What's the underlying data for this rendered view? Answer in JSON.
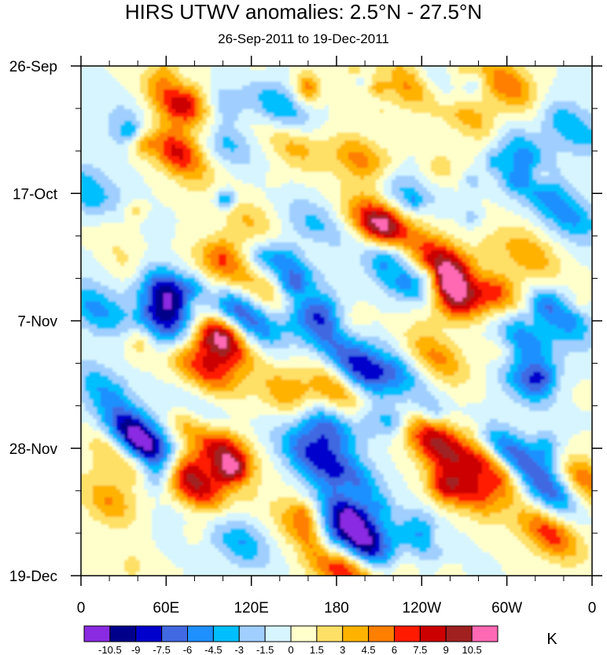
{
  "chart_data": {
    "type": "heatmap",
    "title": "HIRS UTWV anomalies: 2.5°N - 27.5°N",
    "subtitle": "26-Sep-2011 to 19-Dec-2011",
    "xlabel": "",
    "ylabel": "",
    "units": "K",
    "x_tick_labels": [
      "0",
      "60E",
      "120E",
      "180",
      "120W",
      "60W",
      "0"
    ],
    "y_tick_labels": [
      "26-Sep",
      "17-Oct",
      "7-Nov",
      "28-Nov",
      "19-Dec"
    ],
    "xlim": [
      0,
      360
    ],
    "ylim_days": [
      0,
      84
    ],
    "colorbar_levels": [
      "-10.5",
      "-9",
      "-7.5",
      "-6",
      "-4.5",
      "-3",
      "-1.5",
      "0",
      "1.5",
      "3",
      "4.5",
      "6",
      "7.5",
      "9",
      "10.5"
    ],
    "colorbar_colors": [
      "#8a2be2",
      "#00008b",
      "#0000cd",
      "#4169e1",
      "#1e90ff",
      "#00bfff",
      "#a0cfff",
      "#d6f5ff",
      "#ffffcc",
      "#ffe066",
      "#ffb300",
      "#ff7f00",
      "#ff1a00",
      "#cc0000",
      "#a02020",
      "#ff69b4"
    ],
    "anomaly_centers": [
      {
        "lon": 70,
        "day": 6,
        "value": 9.5
      },
      {
        "lon": 66,
        "day": 14,
        "value": 8.5
      },
      {
        "lon": 200,
        "day": 16,
        "value": 6
      },
      {
        "lon": 230,
        "day": 3,
        "value": 5
      },
      {
        "lon": 300,
        "day": 3,
        "value": 6
      },
      {
        "lon": 150,
        "day": 13,
        "value": 4
      },
      {
        "lon": 275,
        "day": 8,
        "value": 5
      },
      {
        "lon": 210,
        "day": 26,
        "value": 9
      },
      {
        "lon": 262,
        "day": 37,
        "value": 10.5
      },
      {
        "lon": 255,
        "day": 32,
        "value": 7
      },
      {
        "lon": 290,
        "day": 37,
        "value": 6
      },
      {
        "lon": 315,
        "day": 31,
        "value": 4.5
      },
      {
        "lon": 98,
        "day": 45,
        "value": 10
      },
      {
        "lon": 88,
        "day": 50,
        "value": 7
      },
      {
        "lon": 150,
        "day": 55,
        "value": 6
      },
      {
        "lon": 180,
        "day": 53,
        "value": 5
      },
      {
        "lon": 98,
        "day": 63,
        "value": 10.5
      },
      {
        "lon": 80,
        "day": 69,
        "value": 9
      },
      {
        "lon": 30,
        "day": 64,
        "value": 6
      },
      {
        "lon": 20,
        "day": 72,
        "value": 5
      },
      {
        "lon": 250,
        "day": 62,
        "value": 9
      },
      {
        "lon": 290,
        "day": 66,
        "value": 10
      },
      {
        "lon": 270,
        "day": 70,
        "value": 7
      },
      {
        "lon": 250,
        "day": 48,
        "value": 5
      },
      {
        "lon": 330,
        "day": 77,
        "value": 7
      },
      {
        "lon": 100,
        "day": 33,
        "value": 4
      },
      {
        "lon": 120,
        "day": 26,
        "value": 3.5
      },
      {
        "lon": 158,
        "day": 76,
        "value": 5
      },
      {
        "lon": 200,
        "day": 83,
        "value": 4
      },
      {
        "lon": 180,
        "day": 83,
        "value": 6
      },
      {
        "lon": 356,
        "day": 69,
        "value": 5
      },
      {
        "lon": 40,
        "day": 34,
        "value": 4
      },
      {
        "lon": 136,
        "day": 38,
        "value": 4
      },
      {
        "lon": 320,
        "day": 52,
        "value": 4
      },
      {
        "lon": 223,
        "day": 20,
        "value": -4.5
      },
      {
        "lon": 60,
        "day": 37,
        "value": -10.5
      },
      {
        "lon": 58,
        "day": 42,
        "value": -8
      },
      {
        "lon": 45,
        "day": 63,
        "value": -10
      },
      {
        "lon": 35,
        "day": 60,
        "value": -6
      },
      {
        "lon": 226,
        "day": 34,
        "value": -8.5
      },
      {
        "lon": 120,
        "day": 42,
        "value": -7
      },
      {
        "lon": 162,
        "day": 42,
        "value": -7.5
      },
      {
        "lon": 145,
        "day": 33,
        "value": -6
      },
      {
        "lon": 195,
        "day": 50,
        "value": -8
      },
      {
        "lon": 220,
        "day": 50,
        "value": -5
      },
      {
        "lon": 170,
        "day": 59,
        "value": -8
      },
      {
        "lon": 160,
        "day": 64,
        "value": -6.5
      },
      {
        "lon": 190,
        "day": 68,
        "value": -6
      },
      {
        "lon": 198,
        "day": 79,
        "value": -10.5
      },
      {
        "lon": 188,
        "day": 74,
        "value": -7
      },
      {
        "lon": 315,
        "day": 52,
        "value": -8
      },
      {
        "lon": 300,
        "day": 64,
        "value": -9
      },
      {
        "lon": 330,
        "day": 70,
        "value": -7
      },
      {
        "lon": 310,
        "day": 45,
        "value": -6
      },
      {
        "lon": 340,
        "day": 42,
        "value": -5
      },
      {
        "lon": 345,
        "day": 25,
        "value": -4.5
      },
      {
        "lon": 10,
        "day": 40,
        "value": -5
      },
      {
        "lon": 15,
        "day": 53,
        "value": -4
      },
      {
        "lon": 310,
        "day": 14,
        "value": -4.5
      },
      {
        "lon": 345,
        "day": 10,
        "value": -5
      },
      {
        "lon": 40,
        "day": 10,
        "value": -3
      },
      {
        "lon": 100,
        "day": 12,
        "value": -4
      },
      {
        "lon": 140,
        "day": 7,
        "value": -5
      },
      {
        "lon": 260,
        "day": 4,
        "value": -4
      },
      {
        "lon": 320,
        "day": 20,
        "value": -3.5
      },
      {
        "lon": 110,
        "day": 78,
        "value": -5
      },
      {
        "lon": 240,
        "day": 78,
        "value": -3.5
      },
      {
        "lon": 5,
        "day": 20,
        "value": -4
      },
      {
        "lon": 165,
        "day": 26,
        "value": -3.5
      },
      {
        "lon": 87,
        "day": 58,
        "value": -3
      }
    ]
  }
}
